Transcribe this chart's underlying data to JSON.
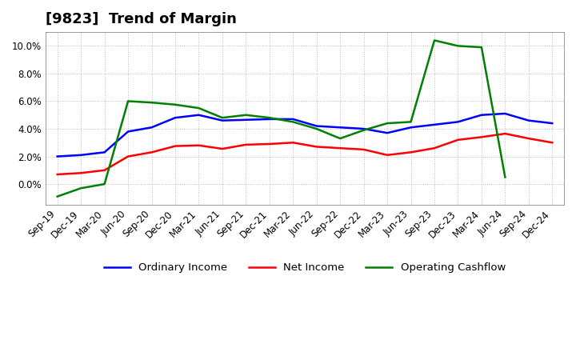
{
  "title": "[9823]  Trend of Margin",
  "x_labels": [
    "Sep-19",
    "Dec-19",
    "Mar-20",
    "Jun-20",
    "Sep-20",
    "Dec-20",
    "Mar-21",
    "Jun-21",
    "Sep-21",
    "Dec-21",
    "Mar-22",
    "Jun-22",
    "Sep-22",
    "Dec-22",
    "Mar-23",
    "Jun-23",
    "Sep-23",
    "Dec-23",
    "Mar-24",
    "Jun-24",
    "Sep-24",
    "Dec-24"
  ],
  "ordinary_income": [
    2.0,
    2.1,
    2.3,
    3.8,
    4.1,
    4.8,
    5.0,
    4.6,
    4.65,
    4.7,
    4.7,
    4.2,
    4.1,
    4.0,
    3.7,
    4.1,
    4.3,
    4.5,
    5.0,
    5.1,
    4.6,
    4.4
  ],
  "net_income": [
    0.7,
    0.8,
    1.0,
    2.0,
    2.3,
    2.75,
    2.8,
    2.55,
    2.85,
    2.9,
    3.0,
    2.7,
    2.6,
    2.5,
    2.1,
    2.3,
    2.6,
    3.2,
    3.4,
    3.65,
    3.3,
    3.0
  ],
  "operating_cashflow": [
    -0.9,
    -0.3,
    0.0,
    6.0,
    5.9,
    5.75,
    5.5,
    4.8,
    5.0,
    4.8,
    4.5,
    4.0,
    3.3,
    3.9,
    4.4,
    4.5,
    10.4,
    10.0,
    9.9,
    0.5,
    null,
    null
  ],
  "ylim": [
    -1.5,
    11.0
  ],
  "yticks": [
    0.0,
    2.0,
    4.0,
    6.0,
    8.0,
    10.0
  ],
  "ordinary_income_color": "#0000FF",
  "net_income_color": "#FF0000",
  "operating_cashflow_color": "#008000",
  "background_color": "#FFFFFF",
  "grid_color": "#BBBBBB",
  "title_fontsize": 13,
  "axis_fontsize": 8.5,
  "legend_fontsize": 9.5,
  "line_width": 1.8
}
